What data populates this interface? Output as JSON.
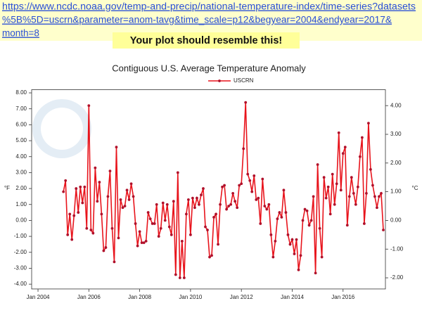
{
  "link": {
    "lines": [
      "https://www.ncdc.noaa.gov/temp-and-precip/national-temperature-index/time-series?datasets",
      "%5B%5D=uscrn&parameter=anom-tavg&time_scale=p12&begyear=2004&endyear=2017&",
      "month=8"
    ]
  },
  "banner": "Your plot should resemble this!",
  "chart_data": {
    "type": "line",
    "title": "Contiguous U.S. Average Temperature Anomaly",
    "ylabel": "°F",
    "y2label": "°C",
    "grid": false,
    "legend": "top",
    "xlim": [
      "2003-10",
      "2017-09"
    ],
    "xticks": [
      {
        "value": "2004-01",
        "label": "Jan 2004"
      },
      {
        "value": "2006-01",
        "label": "Jan 2006"
      },
      {
        "value": "2008-01",
        "label": "Jan 2008"
      },
      {
        "value": "2010-01",
        "label": "Jan 2010"
      },
      {
        "value": "2012-01",
        "label": "Jan 2012"
      },
      {
        "value": "2014-01",
        "label": "Jan 2014"
      },
      {
        "value": "2016-01",
        "label": "Jan 2016"
      }
    ],
    "ylim": [
      -4.3,
      8.2
    ],
    "yticks": [
      {
        "value": 8,
        "label": "8.00"
      },
      {
        "value": 7,
        "label": "7.00"
      },
      {
        "value": 6,
        "label": "6.00"
      },
      {
        "value": 5,
        "label": "5.00"
      },
      {
        "value": 4,
        "label": "4.00"
      },
      {
        "value": 3,
        "label": "3.00"
      },
      {
        "value": 2,
        "label": "2.00"
      },
      {
        "value": 1,
        "label": "1.00"
      },
      {
        "value": 0,
        "label": "0.00"
      },
      {
        "value": -1,
        "label": "-1.00"
      },
      {
        "value": -2,
        "label": "-2.00"
      },
      {
        "value": -3,
        "label": "-3.00"
      },
      {
        "value": -4,
        "label": "-4.00"
      }
    ],
    "y2lim": [
      -2.389,
      4.556
    ],
    "y2ticks": [
      {
        "value": 4,
        "label": "4.00"
      },
      {
        "value": 3,
        "label": "3.00"
      },
      {
        "value": 2,
        "label": "2.00"
      },
      {
        "value": 1,
        "label": "1.00"
      },
      {
        "value": 0,
        "label": "0.00"
      },
      {
        "value": -1,
        "label": "-1.00"
      },
      {
        "value": -2,
        "label": "-2.00"
      }
    ],
    "x": [
      "2005-01",
      "2005-02",
      "2005-03",
      "2005-04",
      "2005-05",
      "2005-06",
      "2005-07",
      "2005-08",
      "2005-09",
      "2005-10",
      "2005-11",
      "2005-12",
      "2006-01",
      "2006-02",
      "2006-03",
      "2006-04",
      "2006-05",
      "2006-06",
      "2006-07",
      "2006-08",
      "2006-09",
      "2006-10",
      "2006-11",
      "2006-12",
      "2007-01",
      "2007-02",
      "2007-03",
      "2007-04",
      "2007-05",
      "2007-06",
      "2007-07",
      "2007-08",
      "2007-09",
      "2007-10",
      "2007-11",
      "2007-12",
      "2008-01",
      "2008-02",
      "2008-03",
      "2008-04",
      "2008-05",
      "2008-06",
      "2008-07",
      "2008-08",
      "2008-09",
      "2008-10",
      "2008-11",
      "2008-12",
      "2009-01",
      "2009-02",
      "2009-03",
      "2009-04",
      "2009-05",
      "2009-06",
      "2009-07",
      "2009-08",
      "2009-09",
      "2009-10",
      "2009-11",
      "2009-12",
      "2010-01",
      "2010-02",
      "2010-03",
      "2010-04",
      "2010-05",
      "2010-06",
      "2010-07",
      "2010-08",
      "2010-09",
      "2010-10",
      "2010-11",
      "2010-12",
      "2011-01",
      "2011-02",
      "2011-03",
      "2011-04",
      "2011-05",
      "2011-06",
      "2011-07",
      "2011-08",
      "2011-09",
      "2011-10",
      "2011-11",
      "2011-12",
      "2012-01",
      "2012-02",
      "2012-03",
      "2012-04",
      "2012-05",
      "2012-06",
      "2012-07",
      "2012-08",
      "2012-09",
      "2012-10",
      "2012-11",
      "2012-12",
      "2013-01",
      "2013-02",
      "2013-03",
      "2013-04",
      "2013-05",
      "2013-06",
      "2013-07",
      "2013-08",
      "2013-09",
      "2013-10",
      "2013-11",
      "2013-12",
      "2014-01",
      "2014-02",
      "2014-03",
      "2014-04",
      "2014-05",
      "2014-06",
      "2014-07",
      "2014-08",
      "2014-09",
      "2014-10",
      "2014-11",
      "2014-12",
      "2015-01",
      "2015-02",
      "2015-03",
      "2015-04",
      "2015-05",
      "2015-06",
      "2015-07",
      "2015-08",
      "2015-09",
      "2015-10",
      "2015-11",
      "2015-12",
      "2016-01",
      "2016-02",
      "2016-03",
      "2016-04",
      "2016-05",
      "2016-06",
      "2016-07",
      "2016-08",
      "2016-09",
      "2016-10",
      "2016-11",
      "2016-12",
      "2017-01",
      "2017-02",
      "2017-03",
      "2017-04",
      "2017-05",
      "2017-06",
      "2017-07",
      "2017-08"
    ],
    "series": [
      {
        "name": "USCRN",
        "color": "#e8141c",
        "marker_color": "#b0102a",
        "values": [
          1.8,
          2.5,
          -0.9,
          0.4,
          -1.2,
          0.3,
          2.0,
          0.5,
          2.1,
          1.1,
          2.1,
          -0.5,
          7.2,
          -0.6,
          -0.8,
          3.3,
          1.2,
          2.4,
          0.4,
          -1.9,
          -1.7,
          1.5,
          3.1,
          -0.5,
          -2.6,
          4.6,
          -1.1,
          1.3,
          0.8,
          0.9,
          1.9,
          1.3,
          2.3,
          1.5,
          -0.2,
          -1.6,
          -0.7,
          -1.4,
          -1.4,
          -1.3,
          0.5,
          0.1,
          -0.2,
          -0.2,
          1.0,
          -1.0,
          -0.5,
          1.1,
          0.0,
          1.0,
          -0.4,
          -0.9,
          1.2,
          -3.4,
          3.0,
          -3.6,
          -1.3,
          -3.6,
          0.4,
          1.3,
          -0.9,
          1.4,
          0.8,
          1.4,
          1.0,
          1.6,
          2.0,
          -0.4,
          -0.6,
          -2.3,
          -2.2,
          0.2,
          0.4,
          -1.5,
          1.0,
          2.1,
          2.2,
          0.7,
          0.9,
          1.0,
          1.7,
          1.2,
          0.8,
          2.2,
          2.3,
          4.5,
          7.4,
          2.9,
          2.5,
          1.8,
          2.8,
          1.3,
          1.4,
          -0.2,
          2.6,
          0.9,
          0.7,
          1.0,
          -0.9,
          -2.3,
          -1.3,
          0.1,
          0.5,
          0.2,
          1.9,
          0.5,
          -0.9,
          -1.5,
          -1.2,
          -2.1,
          -1.2,
          -3.1,
          -2.2,
          0.0,
          0.7,
          0.6,
          -0.3,
          0.0,
          1.5,
          -3.3,
          3.5,
          -0.5,
          -2.3,
          2.7,
          1.4,
          2.1,
          0.4,
          2.9,
          1.0,
          2.3,
          5.5,
          1.9,
          4.2,
          4.6,
          -0.3,
          1.5,
          2.7,
          1.7,
          1.0,
          2.1,
          4.0,
          5.2,
          -0.2,
          1.7,
          6.1,
          3.2,
          2.2,
          1.5,
          0.8,
          1.5,
          1.7,
          -0.6
        ]
      }
    ]
  }
}
